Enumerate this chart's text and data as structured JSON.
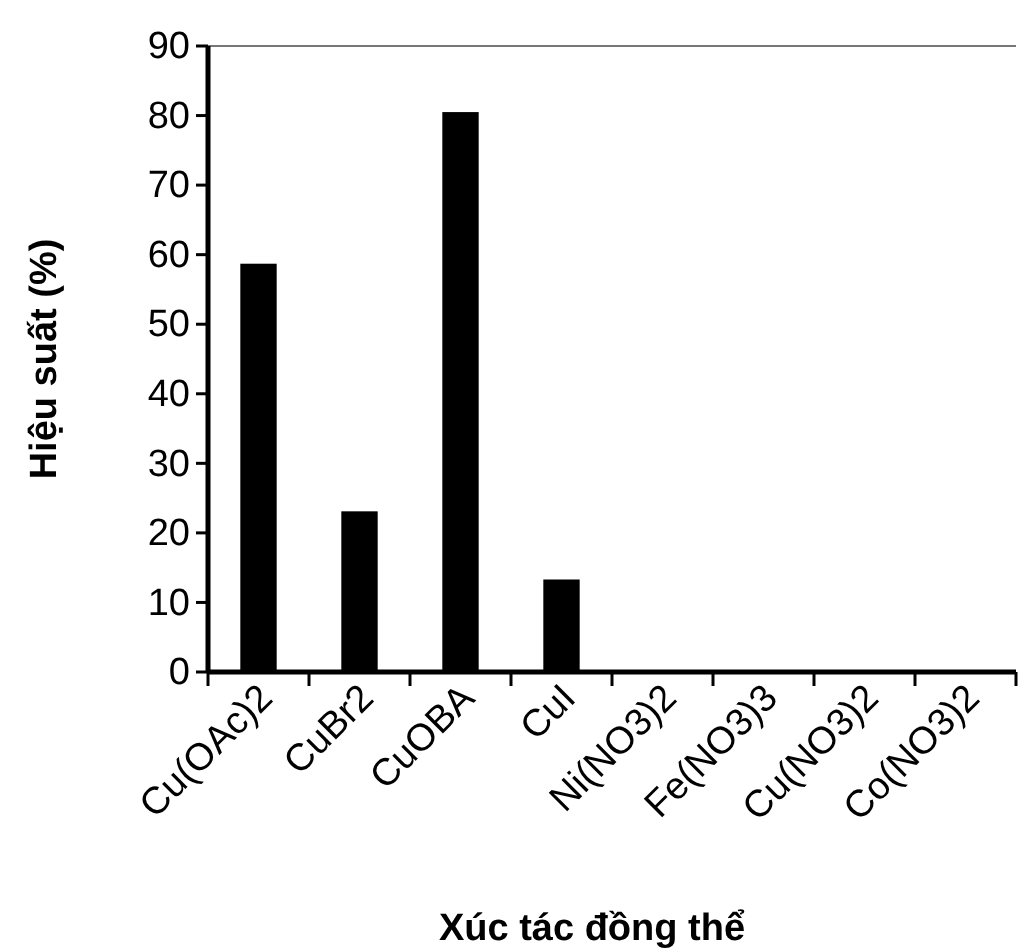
{
  "chart_data": {
    "type": "bar",
    "xlabel": "Xúc tác đồng thể",
    "ylabel": "Hiệu suất (%)",
    "categories": [
      "Cu(OAc)2",
      "CuBr2",
      "CuOBA",
      "CuI",
      "Ni(NO3)2",
      "Fe(NO3)3",
      "Cu(NO3)2",
      "Co(NO3)2"
    ],
    "values": [
      58.7,
      23.1,
      80.5,
      13.3,
      0,
      0,
      0,
      0
    ],
    "color": "#000000",
    "ylim": [
      0,
      90
    ],
    "yticks": [
      0,
      10,
      20,
      30,
      40,
      50,
      60,
      70,
      80,
      90
    ],
    "grid": false
  }
}
